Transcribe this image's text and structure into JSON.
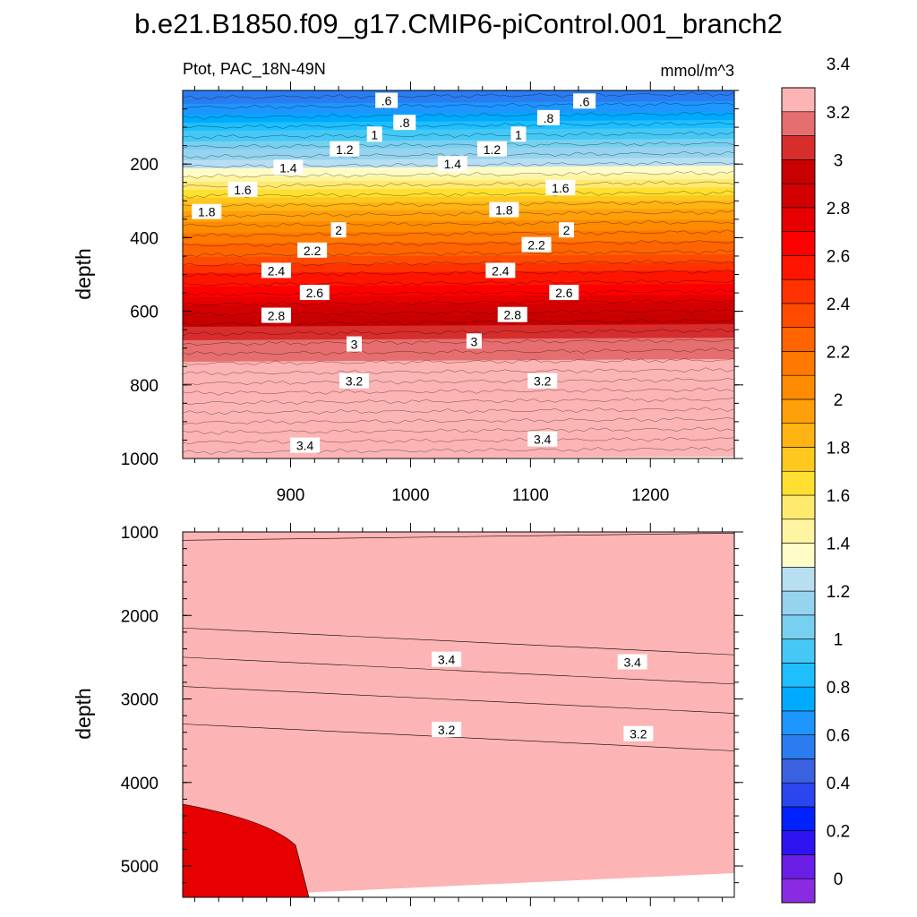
{
  "chart_data": [
    {
      "type": "contour",
      "title": "b.e21.B1850.f09_g17.CMIP6-piControl.001_branch2",
      "left_label": "Ptot, PAC_18N-49N",
      "units": "mmol/m^3",
      "xlabel": "",
      "ylabel": "depth",
      "xlim": [
        810,
        1270
      ],
      "ylim": [
        0,
        1000
      ],
      "xticks": [
        "900",
        "1000",
        "1100",
        "1200"
      ],
      "yticks": [
        "200",
        "400",
        "600",
        "800",
        "1000"
      ],
      "depth_profile": [
        [
          0,
          0.4
        ],
        [
          50,
          0.55
        ],
        [
          100,
          0.75
        ],
        [
          150,
          0.95
        ],
        [
          200,
          1.15
        ],
        [
          250,
          1.4
        ],
        [
          300,
          1.65
        ],
        [
          320,
          1.78
        ],
        [
          340,
          1.85
        ],
        [
          400,
          2.05
        ],
        [
          450,
          2.2
        ],
        [
          500,
          2.4
        ],
        [
          550,
          2.55
        ],
        [
          600,
          2.75
        ],
        [
          650,
          2.92
        ],
        [
          700,
          3.05
        ],
        [
          750,
          3.12
        ],
        [
          800,
          3.2
        ],
        [
          850,
          3.27
        ],
        [
          900,
          3.33
        ],
        [
          950,
          3.4
        ],
        [
          1000,
          3.45
        ]
      ],
      "contour_labels": [
        {
          "v": ".6",
          "x": 980,
          "y": 28
        },
        {
          "v": ".6",
          "x": 1145,
          "y": 30
        },
        {
          "v": ".8",
          "x": 995,
          "y": 88
        },
        {
          "v": ".8",
          "x": 1115,
          "y": 75
        },
        {
          "v": "1",
          "x": 970,
          "y": 120
        },
        {
          "v": "1",
          "x": 1090,
          "y": 120
        },
        {
          "v": "1.2",
          "x": 945,
          "y": 160
        },
        {
          "v": "1.2",
          "x": 1068,
          "y": 160
        },
        {
          "v": "1.4",
          "x": 898,
          "y": 210
        },
        {
          "v": "1.4",
          "x": 1035,
          "y": 200
        },
        {
          "v": "1.6",
          "x": 860,
          "y": 270
        },
        {
          "v": "1.6",
          "x": 1125,
          "y": 265
        },
        {
          "v": "1.8",
          "x": 830,
          "y": 330
        },
        {
          "v": "1.8",
          "x": 1078,
          "y": 325
        },
        {
          "v": "2",
          "x": 940,
          "y": 380
        },
        {
          "v": "2",
          "x": 1130,
          "y": 380
        },
        {
          "v": "2.2",
          "x": 918,
          "y": 435
        },
        {
          "v": "2.2",
          "x": 1105,
          "y": 420
        },
        {
          "v": "2.4",
          "x": 888,
          "y": 490
        },
        {
          "v": "2.4",
          "x": 1075,
          "y": 490
        },
        {
          "v": "2.6",
          "x": 920,
          "y": 550
        },
        {
          "v": "2.6",
          "x": 1128,
          "y": 550
        },
        {
          "v": "2.8",
          "x": 888,
          "y": 612
        },
        {
          "v": "2.8",
          "x": 1085,
          "y": 610
        },
        {
          "v": "3",
          "x": 953,
          "y": 690
        },
        {
          "v": "3",
          "x": 1053,
          "y": 682
        },
        {
          "v": "3.2",
          "x": 953,
          "y": 790
        },
        {
          "v": "3.2",
          "x": 1110,
          "y": 790
        },
        {
          "v": "3.4",
          "x": 912,
          "y": 965
        },
        {
          "v": "3.4",
          "x": 1110,
          "y": 948
        }
      ]
    },
    {
      "type": "contour",
      "xlabel": "",
      "ylabel": "depth",
      "xlim": [
        810,
        1270
      ],
      "ylim": [
        1000,
        5375
      ],
      "yticks": [
        "1000",
        "2000",
        "3000",
        "4000",
        "5000"
      ],
      "depth_profile": [
        [
          1000,
          3.45
        ],
        [
          1100,
          3.55
        ],
        [
          2150,
          3.55
        ],
        [
          2500,
          3.45
        ],
        [
          2850,
          3.3
        ],
        [
          3300,
          3.2
        ],
        [
          5375,
          3.1
        ]
      ],
      "contour_labels": [
        {
          "v": "3.4",
          "x": 1030,
          "y": 2530
        },
        {
          "v": "3.4",
          "x": 1185,
          "y": 2560
        },
        {
          "v": "3.2",
          "x": 1030,
          "y": 3370
        },
        {
          "v": "3.2",
          "x": 1190,
          "y": 3420
        }
      ]
    }
  ],
  "colorbar": {
    "levels": [
      "0",
      "0.2",
      "0.4",
      "0.6",
      "0.8",
      "1",
      "1.2",
      "1.4",
      "1.6",
      "1.8",
      "2",
      "2.2",
      "2.4",
      "2.6",
      "2.8",
      "3",
      "3.2",
      "3.4"
    ],
    "colors": [
      "#8a2be2",
      "#6a1ee6",
      "#2e14f0",
      "#0022ff",
      "#2a46ee",
      "#3a62e0",
      "#2a7cf0",
      "#1e96ff",
      "#00aaff",
      "#1ebeff",
      "#45c8f5",
      "#78d0f0",
      "#96d3ee",
      "#b8def2",
      "#fffcc8",
      "#fff5a0",
      "#ffea70",
      "#ffe030",
      "#ffc81e",
      "#ffb414",
      "#ffa00a",
      "#ff8c00",
      "#ff7800",
      "#ff6400",
      "#ff4b00",
      "#ff3200",
      "#ff1400",
      "#ff0000",
      "#e60000",
      "#d20000",
      "#c80000",
      "#d72d2d",
      "#e66e6e",
      "#fdb4b4"
    ]
  }
}
